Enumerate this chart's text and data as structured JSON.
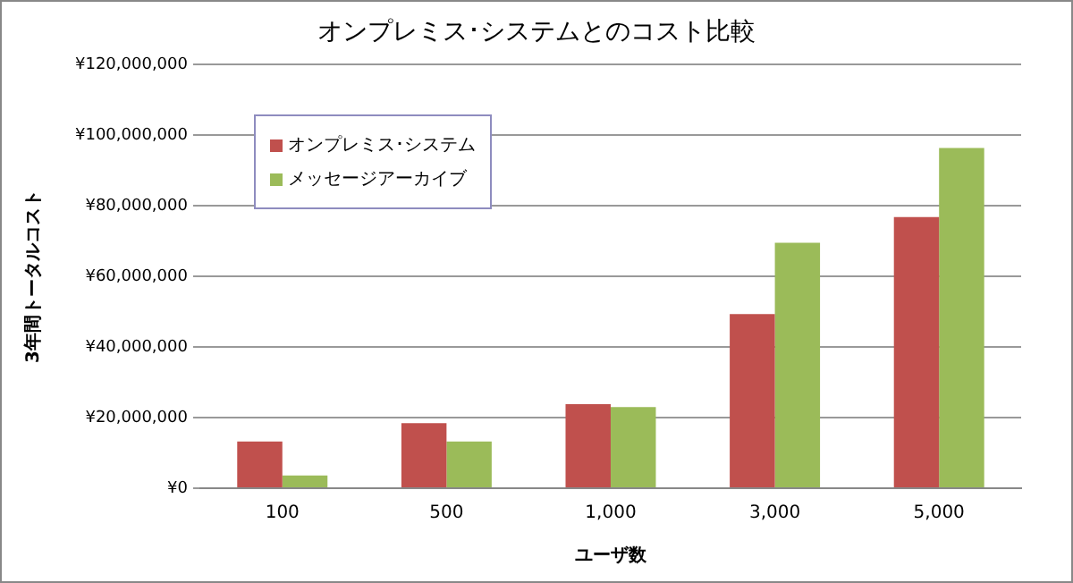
{
  "chart_data": {
    "type": "bar",
    "title": "オンプレミス･システムとのコスト比較",
    "xlabel": "ユーザ数",
    "ylabel": "3年間トータルコスト",
    "categories": [
      "100",
      "500",
      "1,000",
      "3,000",
      "5,000"
    ],
    "series": [
      {
        "name": "オンプレミス･システム",
        "color": "#c0504d",
        "values": [
          13200000,
          18400000,
          23800000,
          49300000,
          76800000
        ]
      },
      {
        "name": "メッセージアーカイブ",
        "color": "#9bbb59",
        "values": [
          3600000,
          13200000,
          23000000,
          69500000,
          96300000
        ]
      }
    ],
    "ylim": [
      0,
      120000000
    ],
    "yticks": [
      {
        "value": 0,
        "label": "¥0"
      },
      {
        "value": 20000000,
        "label": "¥20,000,000"
      },
      {
        "value": 40000000,
        "label": "¥40,000,000"
      },
      {
        "value": 60000000,
        "label": "¥60,000,000"
      },
      {
        "value": 80000000,
        "label": "¥80,000,000"
      },
      {
        "value": 100000000,
        "label": "¥100,000,000"
      },
      {
        "value": 120000000,
        "label": "¥120,000,000"
      }
    ],
    "grid": "y",
    "legend": "top left"
  }
}
